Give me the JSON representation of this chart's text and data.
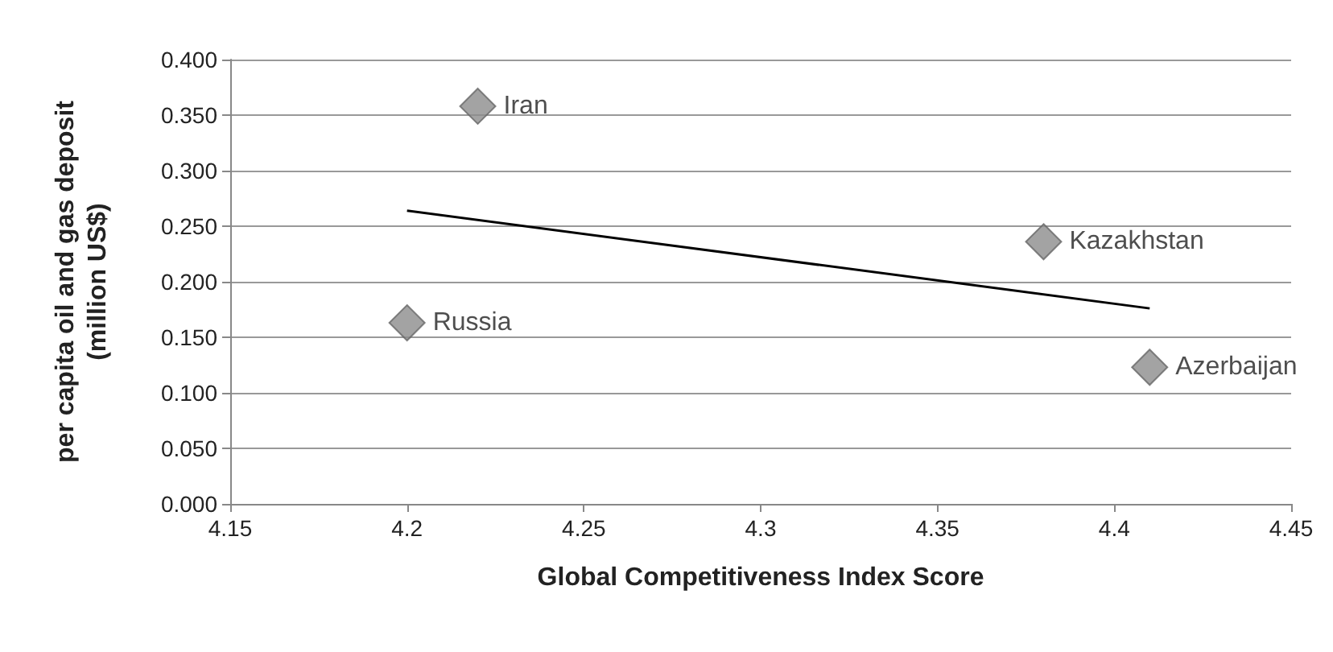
{
  "chart_data": {
    "type": "scatter",
    "xlabel": "Global Competitiveness Index Score",
    "ylabel": "per capita oil and gas deposit\n(million US$)",
    "series": [
      {
        "color": "#8c8c8c",
        "marker": "diamond",
        "x": [
          4.2,
          4.22,
          4.38,
          4.41
        ],
        "values": [
          0.163,
          0.358,
          0.236,
          0.123
        ]
      },
      {
        "type": "line",
        "marker": "none",
        "color": "#000000",
        "x": [
          4.2,
          4.41
        ],
        "values": [
          0.264,
          0.176
        ]
      }
    ],
    "annotations": [
      {
        "text": "Russia",
        "x": 4.2,
        "y": 0.163
      },
      {
        "text": "Iran",
        "x": 4.22,
        "y": 0.358
      },
      {
        "text": "Kazakhstan",
        "x": 4.38,
        "y": 0.236
      },
      {
        "text": "Azerbaijan",
        "x": 4.41,
        "y": 0.123
      }
    ],
    "xlim": [
      4.15,
      4.45
    ],
    "xticks": [
      4.15,
      4.2,
      4.25,
      4.3,
      4.35,
      4.4,
      4.45
    ],
    "ylim": [
      0,
      0.4
    ],
    "yticks": [
      {
        "value": 0,
        "label": "0.000"
      },
      {
        "value": 0.05,
        "label": "0.050"
      },
      {
        "value": 0.1,
        "label": "0.100"
      },
      {
        "value": 0.15,
        "label": "0.150"
      },
      {
        "value": 0.2,
        "label": "0.200"
      },
      {
        "value": 0.25,
        "label": "0.250"
      },
      {
        "value": 0.3,
        "label": "0.300"
      },
      {
        "value": 0.35,
        "label": "0.350"
      },
      {
        "value": 0.4,
        "label": "0.400"
      }
    ],
    "grid": "y",
    "line_style": "solid"
  }
}
